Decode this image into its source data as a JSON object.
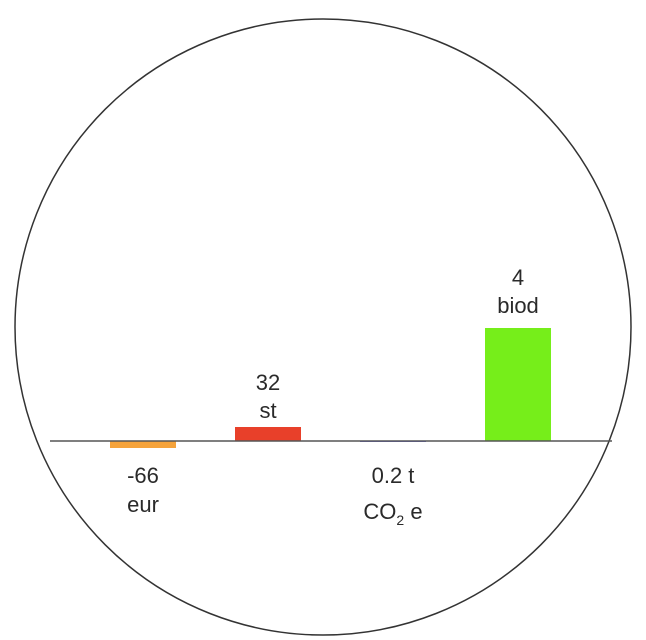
{
  "chart_data": {
    "type": "bar",
    "title": "",
    "xlabel": "",
    "ylabel": "",
    "bars": [
      {
        "value": -66,
        "unit": "eur",
        "color": "#f5a33b"
      },
      {
        "value": 32,
        "unit": "st",
        "color": "#e8402a"
      },
      {
        "value": 0.2,
        "unit": "t CO2 e",
        "color": "#6a6ae0"
      },
      {
        "value": 4,
        "unit": "biod",
        "color": "#76ee1a"
      }
    ],
    "labels": [
      {
        "line1": "-66",
        "line2": "eur"
      },
      {
        "line1": "32",
        "line2": "st"
      },
      {
        "line1": "0.2 t",
        "line2_main": "CO",
        "line2_sub": "2",
        "line2_tail": " e"
      },
      {
        "line1": "4",
        "line2": "biod"
      }
    ],
    "frame_shape": "circle",
    "baseline_color": "#555555",
    "frame_color": "#333333"
  }
}
